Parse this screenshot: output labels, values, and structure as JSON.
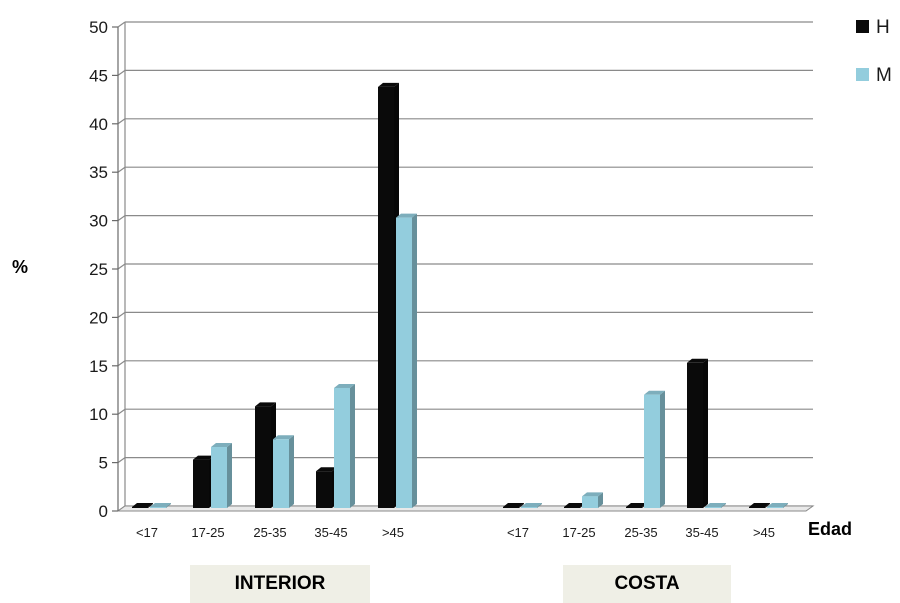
{
  "chart_data": {
    "type": "bar",
    "ylabel": "%",
    "xlabel": "Edad",
    "ylim": [
      0,
      50
    ],
    "yticks": [
      0,
      5,
      10,
      15,
      20,
      25,
      30,
      35,
      40,
      45,
      50
    ],
    "grid": true,
    "legend_position": "top-right",
    "groups": [
      "INTERIOR",
      "COSTA"
    ],
    "categories": [
      "<17",
      "17-25",
      "25-35",
      "35-45",
      ">45"
    ],
    "series": [
      {
        "name": "H",
        "color": "#0a0a0a",
        "values": {
          "INTERIOR": [
            0,
            5,
            10.5,
            3.8,
            43.5
          ],
          "COSTA": [
            0,
            0,
            0,
            15,
            0
          ]
        }
      },
      {
        "name": "M",
        "color": "#93cddd",
        "values": {
          "INTERIOR": [
            0,
            6.3,
            7.1,
            12.4,
            30
          ],
          "COSTA": [
            0,
            1.2,
            11.7,
            0,
            0
          ]
        }
      }
    ]
  }
}
